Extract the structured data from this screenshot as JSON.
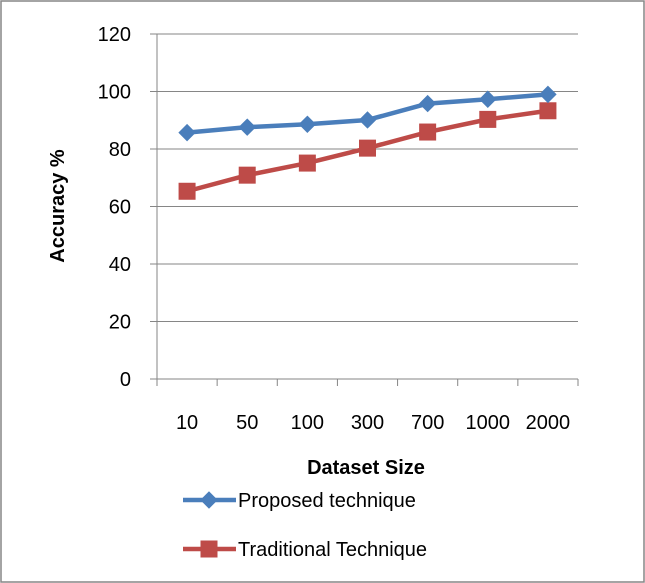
{
  "chart_data": {
    "type": "line",
    "categories": [
      "10",
      "50",
      "100",
      "300",
      "700",
      "1000",
      "2000"
    ],
    "series": [
      {
        "name": "Proposed technique",
        "values": [
          85.7,
          87.6,
          88.6,
          90.1,
          95.8,
          97.3,
          99.0
        ],
        "color": "#4A7EBB",
        "marker": "diamond"
      },
      {
        "name": "Traditional Technique",
        "values": [
          65.3,
          70.9,
          75.1,
          80.3,
          85.9,
          90.3,
          93.3
        ],
        "color": "#BE4B48",
        "marker": "square"
      }
    ],
    "xlabel": "Dataset Size",
    "ylabel": "Accuracy %",
    "ylim": [
      0,
      120
    ],
    "yticks": [
      0,
      20,
      40,
      60,
      80,
      100,
      120
    ],
    "grid": "horizontal",
    "legend_position": "bottom"
  }
}
